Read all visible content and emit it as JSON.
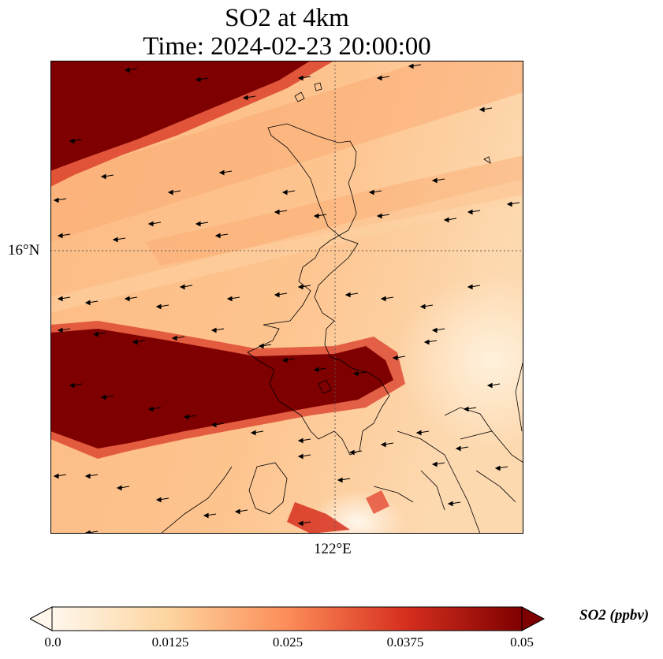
{
  "title_line1": "SO2 at 4km",
  "title_line2": "Time: 2024-02-23 20:00:00",
  "axes": {
    "lat_label": "16°N",
    "lon_label": "122°E"
  },
  "colorbar": {
    "label": "SO2 (ppbv)",
    "ticks": [
      "0.0",
      "0.0125",
      "0.025",
      "0.0375",
      "0.05"
    ],
    "range": [
      0.0,
      0.05
    ],
    "extend": "both",
    "colormap": "OrRd",
    "colors": [
      "#fff7ec",
      "#fdd49e",
      "#fc8d59",
      "#d7301f",
      "#7f0000"
    ]
  },
  "map": {
    "variable": "SO2",
    "level": "4km",
    "plume_color": "#7f0000",
    "background_color": "#fdc28c",
    "coastline_color": "#000000",
    "gridline_style": "dotted",
    "wind_vectors": true,
    "wind_direction": "westward"
  }
}
